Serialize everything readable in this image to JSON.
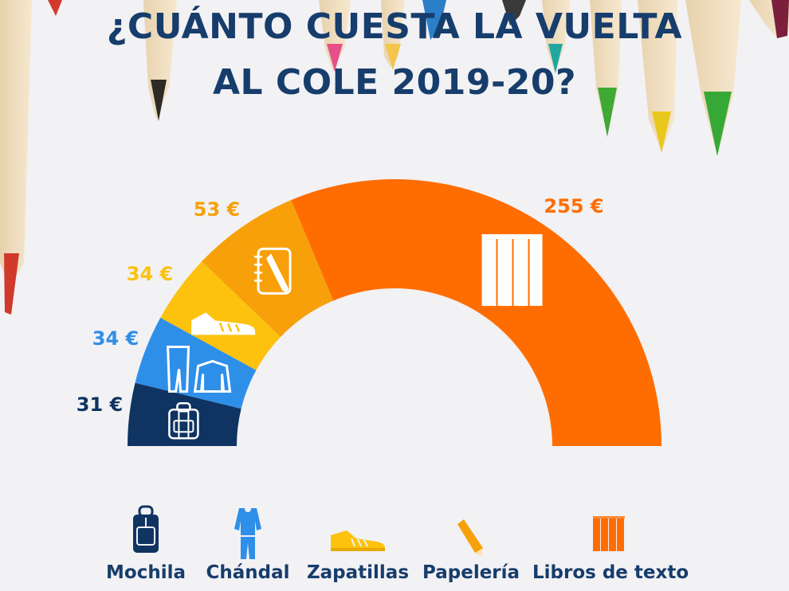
{
  "title_line1": "¿CUÁNTO CUESTA LA VUELTA",
  "title_line2": "AL COLE 2019-20?",
  "chart_data": {
    "type": "semi-donut",
    "categories": [
      "Mochila",
      "Chándal",
      "Zapatillas",
      "Papelería",
      "Libros de texto"
    ],
    "values": [
      31,
      34,
      34,
      53,
      255
    ],
    "value_labels": [
      "31 €",
      "34 €",
      "34 €",
      "53 €",
      "255 €"
    ],
    "colors": [
      "#0f3461",
      "#2e8fe8",
      "#fcc20e",
      "#f7a00a",
      "#ff6d00"
    ],
    "icons": [
      "backpack-icon",
      "tracksuit-icon",
      "sneaker-icon",
      "notebook-pencil-icon",
      "books-icon"
    ]
  },
  "legend": [
    {
      "label": "Mochila",
      "icon": "backpack-icon",
      "color": "#0f3461"
    },
    {
      "label": "Chándal",
      "icon": "tracksuit-icon",
      "color": "#2e8fe8"
    },
    {
      "label": "Zapatillas",
      "icon": "sneaker-icon",
      "color": "#fcc20e"
    },
    {
      "label": "Papelería",
      "icon": "pencil-icon",
      "color": "#f7a00a"
    },
    {
      "label": "Libros de texto",
      "icon": "books-icon",
      "color": "#ff6d00"
    }
  ]
}
